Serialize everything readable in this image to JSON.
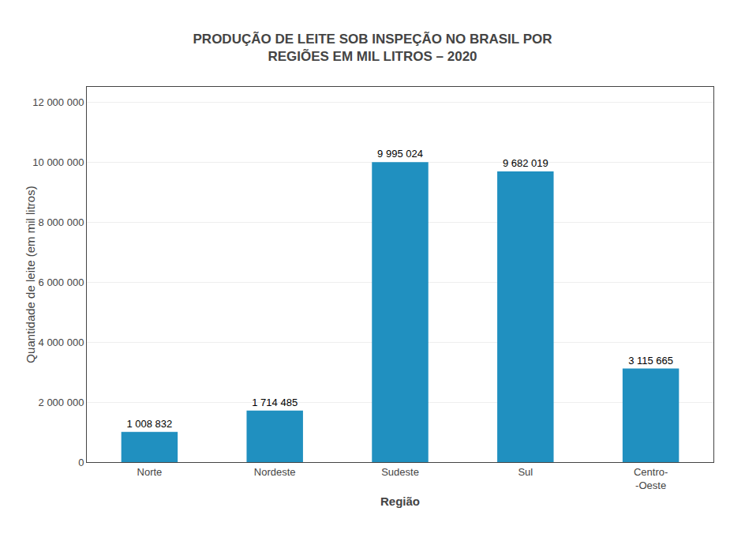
{
  "chart_data": {
    "type": "bar",
    "title": "PRODUÇÃO DE LEITE SOB INSPEÇÃO NO BRASIL POR\nREGIÕES EM MIL LITROS – 2020",
    "xlabel": "Região",
    "ylabel": "Quantidade de leite (em mil litros)",
    "categories": [
      "Norte",
      "Nordeste",
      "Sudeste",
      "Sul",
      "Centro-\n-Oeste"
    ],
    "values": [
      1008832,
      1714485,
      9995024,
      9682019,
      3115665
    ],
    "value_labels": [
      "1 008 832",
      "1 714 485",
      "9 995 024",
      "9 682 019",
      "3 115 665"
    ],
    "data_labels": true,
    "color": "#2090C0",
    "ylim": [
      0,
      12500000
    ],
    "yticks": [
      0,
      {
        "value": 2000000,
        "label": "2 000 000"
      },
      {
        "value": 4000000,
        "label": "4 000 000"
      },
      {
        "value": 6000000,
        "label": "6 000 000"
      },
      {
        "value": 8000000,
        "label": "8 000 000"
      },
      {
        "value": 10000000,
        "label": "10 000 000"
      },
      {
        "value": 12000000,
        "label": "12 000 000"
      }
    ],
    "grid": true
  }
}
